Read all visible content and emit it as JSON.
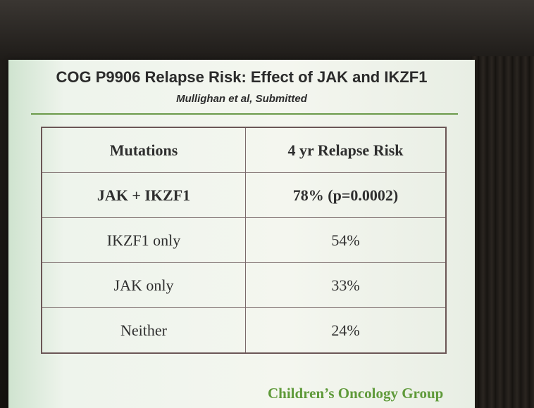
{
  "slide": {
    "title": "COG P9906 Relapse Risk: Effect of JAK and IKZF1",
    "subtitle": "Mullighan et al, Submitted",
    "table": {
      "header": [
        "Mutations",
        "4 yr Relapse Risk"
      ],
      "rows": [
        [
          "JAK + IKZF1",
          "78% (p=0.0002)"
        ],
        [
          "IKZF1 only",
          "54%"
        ],
        [
          "JAK only",
          "33%"
        ],
        [
          "Neither",
          "24%"
        ]
      ]
    },
    "footer": "Children’s Oncology Group"
  }
}
